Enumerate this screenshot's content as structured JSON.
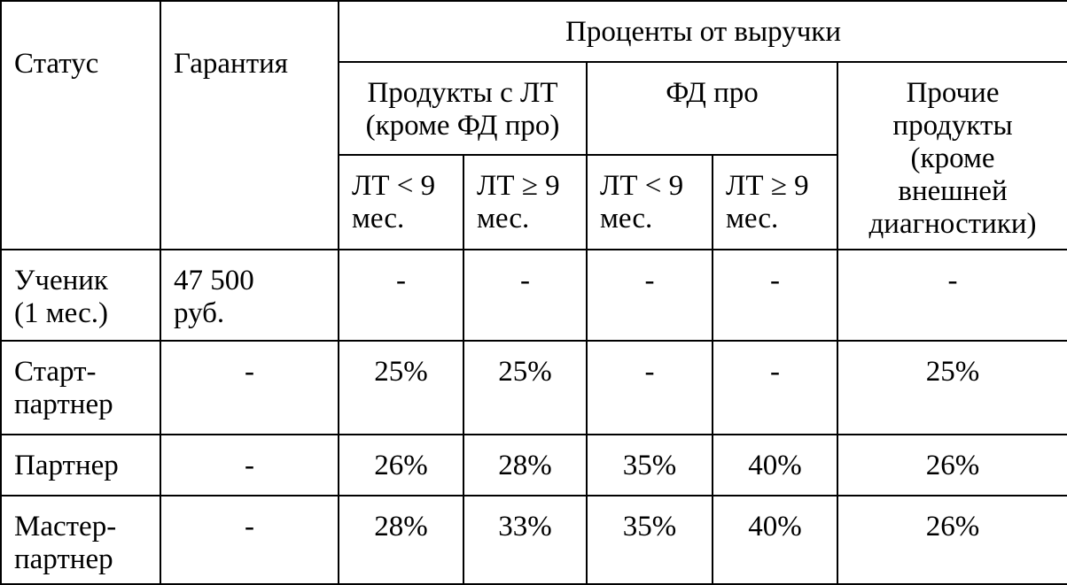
{
  "table": {
    "header": {
      "status": "Статус",
      "guarantee": "Гарантия",
      "revenue_percent": "Проценты от выручки",
      "products_lt": "Продукты с ЛТ\n(кроме ФД про)",
      "fd_pro": "ФД про",
      "other_products": "Прочие\nпродукты\n(кроме\nвнешней\nдиагностики)",
      "lt_lt9": "ЛТ < 9\nмес.",
      "lt_ge9": "ЛТ ≥ 9\nмес.",
      "fd_lt9": "ЛТ < 9\nмес.",
      "fd_ge9": "ЛТ ≥ 9\nмес."
    },
    "rows": [
      {
        "status": "Ученик\n(1 мес.)",
        "guarantee": "47 500\nруб.",
        "lt_lt9": "-",
        "lt_ge9": "-",
        "fd_lt9": "-",
        "fd_ge9": "-",
        "other": "-"
      },
      {
        "status": "Старт-\nпартнер",
        "guarantee": "-",
        "lt_lt9": "25%",
        "lt_ge9": "25%",
        "fd_lt9": "-",
        "fd_ge9": "-",
        "other": "25%"
      },
      {
        "status": "Партнер",
        "guarantee": "-",
        "lt_lt9": "26%",
        "lt_ge9": "28%",
        "fd_lt9": "35%",
        "fd_ge9": "40%",
        "other": "26%"
      },
      {
        "status": "Мастер-\nпартнер",
        "guarantee": "-",
        "lt_lt9": "28%",
        "lt_ge9": "33%",
        "fd_lt9": "35%",
        "fd_ge9": "40%",
        "other": "26%"
      }
    ]
  }
}
